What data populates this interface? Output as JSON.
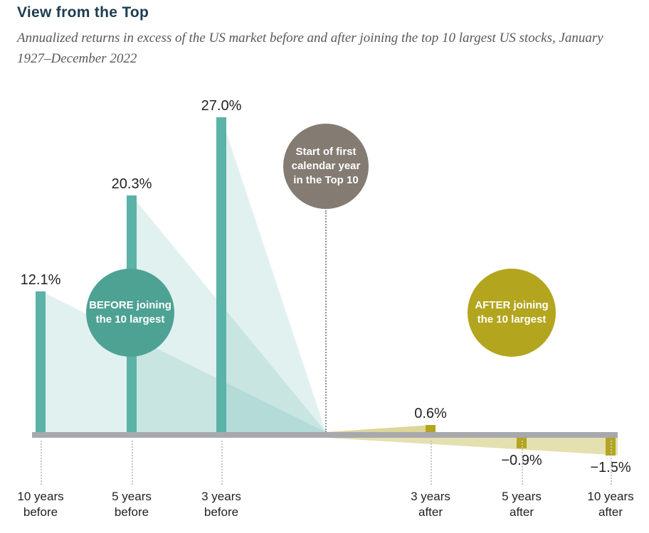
{
  "header": {
    "title": "View from the Top",
    "subtitle": "Annualized returns in excess of the US market before and after joining the top 10 largest US stocks, January 1927–December 2022"
  },
  "colors": {
    "title": "#1d3c52",
    "subtitle": "#57585a",
    "text": "#231f20",
    "before_bar": "#5bb2a6",
    "after_bar": "#b3a51e",
    "baseline": "#a7a9ac"
  },
  "chart_data": {
    "type": "bar",
    "title": "View from the Top",
    "subtitle": "Annualized returns in excess of the US market before and after joining the top 10 largest US stocks, January 1927–December 2022",
    "categories": [
      "10 years before",
      "5 years before",
      "3 years before",
      "3 years after",
      "5 years after",
      "10 years after"
    ],
    "values": [
      12.1,
      20.3,
      27.0,
      0.6,
      -0.9,
      -1.5
    ],
    "unit": "%",
    "ylim": [
      -2,
      29
    ],
    "grid": false,
    "legend_position": "none",
    "bars": [
      {
        "value": 12.1,
        "value_label": "12.1%",
        "tick_line1": "10 years",
        "tick_line2": "before",
        "group": "before"
      },
      {
        "value": 20.3,
        "value_label": "20.3%",
        "tick_line1": "5 years",
        "tick_line2": "before",
        "group": "before"
      },
      {
        "value": 27.0,
        "value_label": "27.0%",
        "tick_line1": "3 years",
        "tick_line2": "before",
        "group": "before"
      },
      {
        "value": 0.6,
        "value_label": "0.6%",
        "tick_line1": "3 years",
        "tick_line2": "after",
        "group": "after"
      },
      {
        "value": -0.9,
        "value_label": "−0.9%",
        "tick_line1": "5 years",
        "tick_line2": "after",
        "group": "after"
      },
      {
        "value": -1.5,
        "value_label": "−1.5%",
        "tick_line1": "10 years",
        "tick_line2": "after",
        "group": "after"
      }
    ],
    "annotations": {
      "before_circle": {
        "line1": "BEFORE joining",
        "line2": "the 10 largest",
        "color": "#4da294"
      },
      "start_circle": {
        "line1": "Start of first",
        "line2": "calendar year",
        "line3": "in the Top 10",
        "color": "#847b72"
      },
      "after_circle": {
        "line1": "AFTER joining",
        "line2": "the 10 largest",
        "color": "#b3a51e"
      }
    }
  }
}
